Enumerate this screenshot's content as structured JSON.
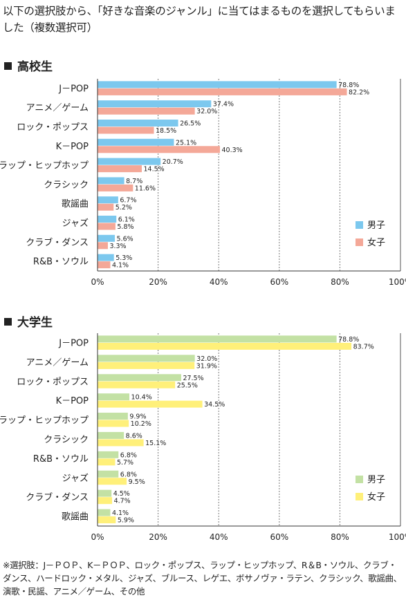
{
  "question": "以下の選択肢から、「好きな音楽のジャンル」に当てはまるものを選択してもらいました（複数選択可）",
  "footnote": "※選択肢：J－ＰＯＰ、K－ＰＯＰ、ロック・ポップス、ラップ・ヒップホップ、R＆B・ソウル、クラブ・ダンス、ハードロック・メタル、ジャズ、ブルース、レゲエ、ボサノヴァ・ラテン、クラシック、歌謡曲、演歌・民謡、アニメ／ゲーム、その他",
  "chart_data": [
    {
      "type": "bar",
      "orientation": "horizontal",
      "title": "高校生",
      "categories": [
        "J－POP",
        "アニメ／ゲーム",
        "ロック・ポップス",
        "K－POP",
        "ラップ・ヒップホップ",
        "クラシック",
        "歌謡曲",
        "ジャズ",
        "クラブ・ダンス",
        "R&B・ソウル"
      ],
      "series": [
        {
          "name": "男子",
          "color": "#7cc8ee",
          "values": [
            78.8,
            37.4,
            26.5,
            25.1,
            20.7,
            8.7,
            6.7,
            6.1,
            5.6,
            5.3
          ]
        },
        {
          "name": "女子",
          "color": "#f4a898",
          "values": [
            82.2,
            32.0,
            18.5,
            40.3,
            14.5,
            11.6,
            5.2,
            5.8,
            3.3,
            4.1
          ]
        }
      ],
      "xlim": [
        0,
        100
      ],
      "xticks": [
        "0%",
        "20%",
        "40%",
        "60%",
        "80%",
        "100%"
      ],
      "grid": "vertical dashed",
      "legend": "bottom-right"
    },
    {
      "type": "bar",
      "orientation": "horizontal",
      "title": "大学生",
      "categories": [
        "J－POP",
        "アニメ／ゲーム",
        "ロック・ポップス",
        "K－POP",
        "ラップ・ヒップホップ",
        "クラシック",
        "R&B・ソウル",
        "ジャズ",
        "クラブ・ダンス",
        "歌謡曲"
      ],
      "series": [
        {
          "name": "男子",
          "color": "#c3e1a4",
          "values": [
            78.8,
            32.0,
            27.5,
            10.4,
            9.9,
            8.6,
            6.8,
            6.8,
            4.5,
            4.1
          ]
        },
        {
          "name": "女子",
          "color": "#fff07a",
          "values": [
            83.7,
            31.9,
            25.5,
            34.5,
            10.2,
            15.1,
            5.7,
            9.5,
            4.7,
            5.9
          ]
        }
      ],
      "xlim": [
        0,
        100
      ],
      "xticks": [
        "0%",
        "20%",
        "40%",
        "60%",
        "80%",
        "100%"
      ],
      "grid": "vertical dashed",
      "legend": "bottom-right"
    }
  ]
}
